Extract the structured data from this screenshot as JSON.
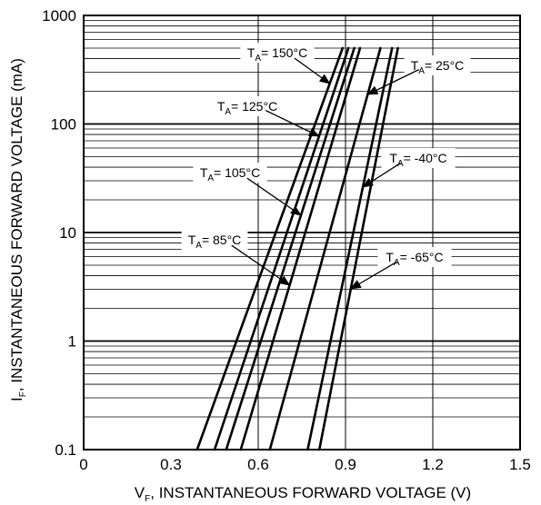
{
  "chart_data": {
    "type": "line",
    "xlabel": "V_F, INSTANTANEOUS FORWARD VOLTAGE (V)",
    "ylabel": "I_F, INSTANTANEOUS FORWARD VOLTAGE (mA)",
    "x_axis": {
      "min": 0,
      "max": 1.5,
      "ticks": [
        0,
        0.3,
        0.6,
        0.9,
        1.2,
        1.5
      ],
      "tick_labels": [
        "0",
        "0.3",
        "0.6",
        "0.9",
        "1.2",
        "1.5"
      ],
      "gridlines": [
        0.6,
        0.9,
        1.2
      ]
    },
    "y_axis": {
      "scale": "log",
      "min": 0.1,
      "max": 1000,
      "ticks": [
        0.1,
        1,
        10,
        100,
        1000
      ],
      "tick_labels": [
        "0.1",
        "1",
        "10",
        "100",
        "1000"
      ]
    },
    "grid": true,
    "series": [
      {
        "name": "150°C",
        "x": [
          0.39,
          0.89
        ],
        "y": [
          0.1,
          500
        ]
      },
      {
        "name": "125°C",
        "x": [
          0.45,
          0.91
        ],
        "y": [
          0.1,
          500
        ]
      },
      {
        "name": "105°C",
        "x": [
          0.49,
          0.93
        ],
        "y": [
          0.1,
          500
        ]
      },
      {
        "name": "85°C",
        "x": [
          0.54,
          0.95
        ],
        "y": [
          0.1,
          500
        ]
      },
      {
        "name": "25°C",
        "x": [
          0.64,
          1.02
        ],
        "y": [
          0.1,
          500
        ]
      },
      {
        "name": "-40°C",
        "x": [
          0.77,
          1.06
        ],
        "y": [
          0.1,
          500
        ]
      },
      {
        "name": "-65°C",
        "x": [
          0.81,
          1.08
        ],
        "y": [
          0.1,
          500
        ]
      }
    ],
    "annotations": [
      {
        "main": "T",
        "sub": "A",
        "suffix": "= 150°C",
        "series": "150°C"
      },
      {
        "main": "T",
        "sub": "A",
        "suffix": "= 125°C",
        "series": "125°C"
      },
      {
        "main": "T",
        "sub": "A",
        "suffix": "= 105°C",
        "series": "105°C"
      },
      {
        "main": "T",
        "sub": "A",
        "suffix": "= 85°C",
        "series": "85°C"
      },
      {
        "main": "T",
        "sub": "A",
        "suffix": "= 25°C",
        "series": "25°C"
      },
      {
        "main": "T",
        "sub": "A",
        "suffix": "= -40°C",
        "series": "-40°C"
      },
      {
        "main": "T",
        "sub": "A",
        "suffix": "= -65°C",
        "series": "-65°C"
      }
    ]
  }
}
